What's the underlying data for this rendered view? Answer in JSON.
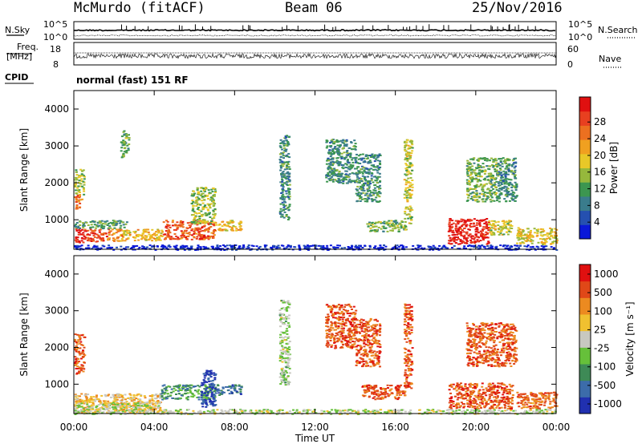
{
  "header": {
    "station": "McMurdo (fitACF)",
    "beam": "Beam 06",
    "date": "25/Nov/2016"
  },
  "strip": {
    "nsky_label": "N.Sky",
    "nsearch_label": "N.Search",
    "noise_ticks": [
      "10^5",
      "10^0"
    ],
    "freq_label": "Freq.",
    "freq_unit": "[MHz]",
    "freq_ticks": [
      "18",
      "8"
    ],
    "nave_label": "Nave",
    "nave_ticks": [
      "60",
      "0"
    ],
    "cpid_label": "CPID",
    "cpid_text": "normal (fast) 151 RF"
  },
  "chart_data": [
    {
      "type": "heatmap",
      "title": "",
      "xlabel": "",
      "ylabel": "Slant Range [km]",
      "ylim": [
        200,
        4500
      ],
      "y_ticks": [
        1000,
        2000,
        3000,
        4000
      ],
      "x_ticks": [
        "00:00",
        "04:00",
        "08:00",
        "12:00",
        "16:00",
        "20:00",
        "00:00"
      ],
      "colorbar_label": "Power [dB]",
      "colorbar_ticks": [
        "4",
        "8",
        "12",
        "16",
        "20",
        "24",
        "28"
      ],
      "colors": [
        "#0a18d8",
        "#2550b0",
        "#3a7c8c",
        "#3c9650",
        "#96b83c",
        "#e8c828",
        "#f0a020",
        "#ec7020",
        "#e84020",
        "#e01010"
      ],
      "regions": [
        {
          "t": [
            0.0,
            0.5
          ],
          "r": [
            400,
            780
          ],
          "v": 0.95
        },
        {
          "t": [
            0.5,
            1.6
          ],
          "r": [
            420,
            760
          ],
          "v": 0.85
        },
        {
          "t": [
            1.6,
            2.4
          ],
          "r": [
            430,
            760
          ],
          "v": 0.7
        },
        {
          "t": [
            2.4,
            4.4
          ],
          "r": [
            450,
            760
          ],
          "v": 0.6
        },
        {
          "t": [
            4.4,
            7.0
          ],
          "r": [
            480,
            1000
          ],
          "v": 0.8
        },
        {
          "t": [
            7.0,
            8.3
          ],
          "r": [
            720,
            1000
          ],
          "v": 0.6
        },
        {
          "t": [
            0.0,
            2.6
          ],
          "r": [
            780,
            1000
          ],
          "v": 0.35
        },
        {
          "t": [
            0.0,
            0.4
          ],
          "r": [
            1300,
            1700
          ],
          "v": 0.75
        },
        {
          "t": [
            0.0,
            0.5
          ],
          "r": [
            1700,
            2400
          ],
          "v": 0.45
        },
        {
          "t": [
            14.5,
            16.5
          ],
          "r": [
            700,
            1000
          ],
          "v": 0.4
        },
        {
          "t": [
            16.4,
            16.8
          ],
          "r": [
            900,
            3200
          ],
          "v": 0.5
        },
        {
          "t": [
            18.6,
            20.6
          ],
          "r": [
            350,
            1050
          ],
          "v": 0.92
        },
        {
          "t": [
            20.6,
            21.8
          ],
          "r": [
            600,
            1000
          ],
          "v": 0.5
        },
        {
          "t": [
            22.0,
            24.0
          ],
          "r": [
            350,
            800
          ],
          "v": 0.55
        },
        {
          "t": [
            5.8,
            7.0
          ],
          "r": [
            900,
            1900
          ],
          "v": 0.45
        },
        {
          "t": [
            10.2,
            10.7
          ],
          "r": [
            1000,
            3300
          ],
          "v": 0.3
        },
        {
          "t": [
            12.5,
            14.0
          ],
          "r": [
            2000,
            3200
          ],
          "v": 0.3
        },
        {
          "t": [
            14.0,
            15.2
          ],
          "r": [
            1500,
            2800
          ],
          "v": 0.3
        },
        {
          "t": [
            19.5,
            21.0
          ],
          "r": [
            1500,
            2700
          ],
          "v": 0.4
        },
        {
          "t": [
            21.0,
            22.0
          ],
          "r": [
            1500,
            2700
          ],
          "v": 0.3
        },
        {
          "t": [
            2.3,
            2.7
          ],
          "r": [
            2700,
            3500
          ],
          "v": 0.4
        },
        {
          "t": [
            0.0,
            24.0
          ],
          "r": [
            200,
            330
          ],
          "v": 0.05
        }
      ]
    },
    {
      "type": "heatmap",
      "title": "",
      "xlabel": "Time UT",
      "ylabel": "Slant Range [km]",
      "ylim": [
        200,
        4500
      ],
      "y_ticks": [
        1000,
        2000,
        3000,
        4000
      ],
      "x_ticks": [
        "00:00",
        "04:00",
        "08:00",
        "12:00",
        "16:00",
        "20:00",
        "00:00"
      ],
      "colorbar_label": "Velocity [m s⁻¹]",
      "colorbar_ticks": [
        "1000",
        "500",
        "100",
        "25",
        "-25",
        "-100",
        "-500",
        "-1000"
      ],
      "colors": [
        "#2030b0",
        "#3c6caa",
        "#3e8a56",
        "#66c03a",
        "#c8c8c0",
        "#f0c030",
        "#ec8a20",
        "#e04818",
        "#e01010"
      ],
      "regions": [
        {
          "t": [
            0.0,
            4.3
          ],
          "r": [
            250,
            760
          ],
          "v": 0.62
        },
        {
          "t": [
            0.0,
            4.3
          ],
          "r": [
            330,
            520
          ],
          "v": 0.48
        },
        {
          "t": [
            4.3,
            7.0
          ],
          "r": [
            600,
            1000
          ],
          "v": 0.28
        },
        {
          "t": [
            7.0,
            8.3
          ],
          "r": [
            720,
            1000
          ],
          "v": 0.2
        },
        {
          "t": [
            6.3,
            7.0
          ],
          "r": [
            400,
            1400
          ],
          "v": 0.08
        },
        {
          "t": [
            0.0,
            0.5
          ],
          "r": [
            1300,
            2400
          ],
          "v": 0.82
        },
        {
          "t": [
            14.3,
            16.5
          ],
          "r": [
            600,
            1000
          ],
          "v": 0.82
        },
        {
          "t": [
            18.6,
            21.8
          ],
          "r": [
            350,
            1050
          ],
          "v": 0.82
        },
        {
          "t": [
            22.0,
            24.0
          ],
          "r": [
            350,
            800
          ],
          "v": 0.78
        },
        {
          "t": [
            16.4,
            16.8
          ],
          "r": [
            900,
            3200
          ],
          "v": 0.82
        },
        {
          "t": [
            19.5,
            21.0
          ],
          "r": [
            1500,
            2700
          ],
          "v": 0.82
        },
        {
          "t": [
            12.5,
            14.0
          ],
          "r": [
            2000,
            3200
          ],
          "v": 0.82
        },
        {
          "t": [
            14.0,
            15.2
          ],
          "r": [
            1500,
            2800
          ],
          "v": 0.82
        },
        {
          "t": [
            10.2,
            10.7
          ],
          "r": [
            1000,
            3300
          ],
          "v": 0.45
        },
        {
          "t": [
            21.0,
            22.0
          ],
          "r": [
            1500,
            2700
          ],
          "v": 0.82
        },
        {
          "t": [
            0.0,
            24.0
          ],
          "r": [
            200,
            330
          ],
          "v": 0.48
        }
      ]
    }
  ]
}
